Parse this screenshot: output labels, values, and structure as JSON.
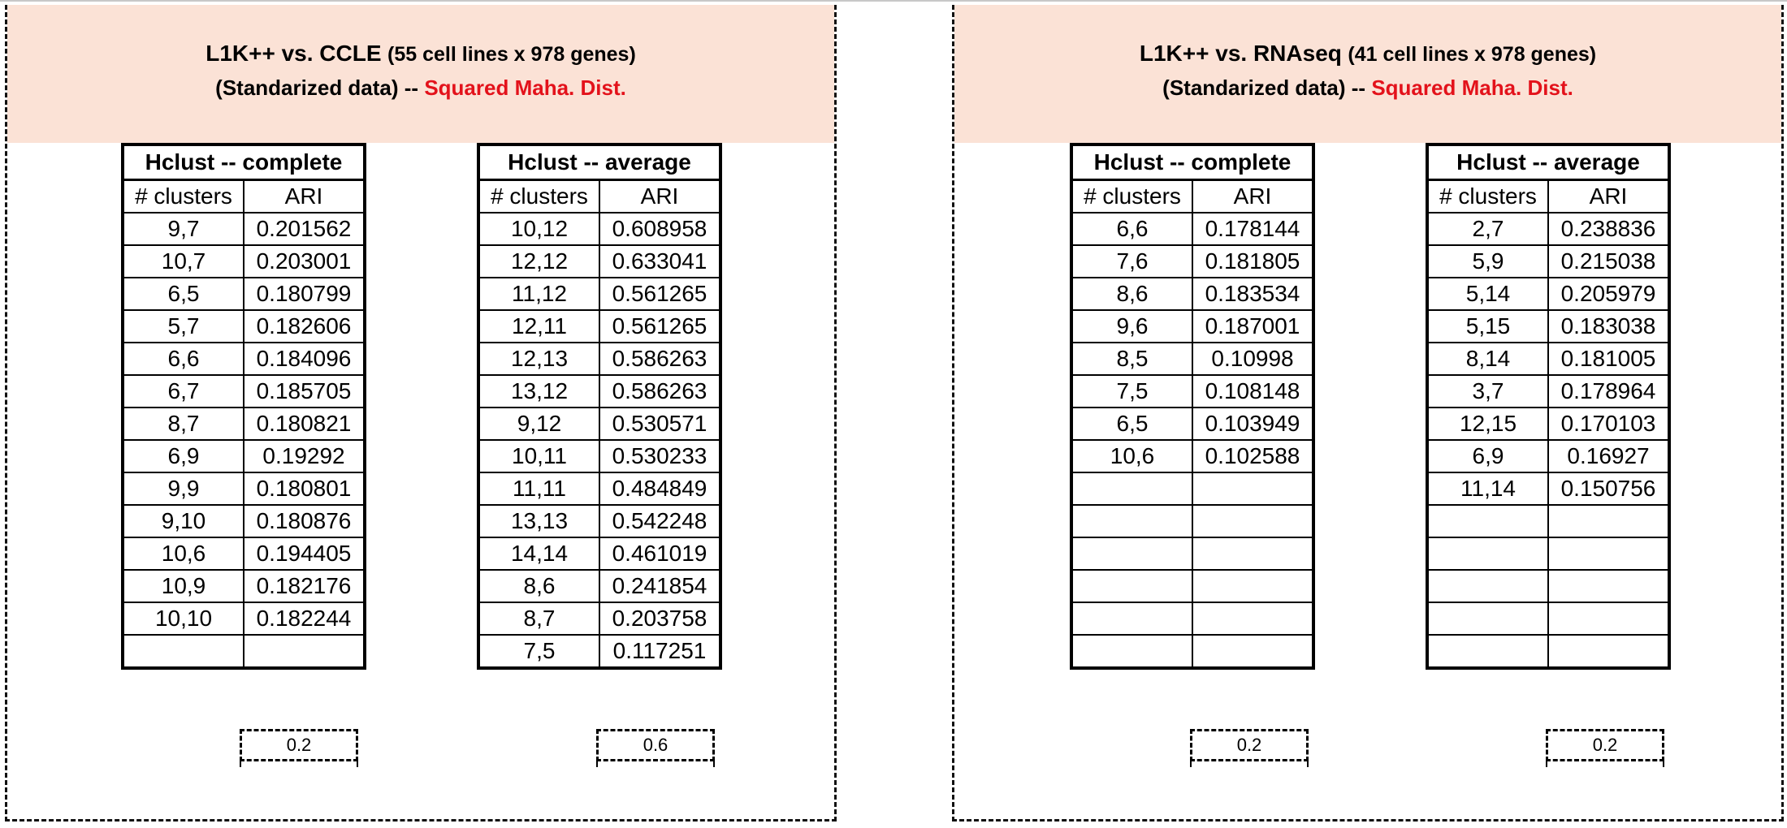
{
  "panels": [
    {
      "title_main": "L1K++ vs. CCLE",
      "title_detail": "(55 cell lines x 978 genes)",
      "subtitle_plain": "(Standarized data) --",
      "subtitle_red": "Squared Maha. Dist.",
      "tables": [
        {
          "title": "Hclust  -- complete",
          "col1": "# clusters",
          "col2": "ARI",
          "rows": [
            [
              "9,7",
              "0.201562"
            ],
            [
              "10,7",
              "0.203001"
            ],
            [
              "6,5",
              "0.180799"
            ],
            [
              "5,7",
              "0.182606"
            ],
            [
              "6,6",
              "0.184096"
            ],
            [
              "6,7",
              "0.185705"
            ],
            [
              "8,7",
              "0.180821"
            ],
            [
              "6,9",
              "0.19292"
            ],
            [
              "9,9",
              "0.180801"
            ],
            [
              "9,10",
              "0.180876"
            ],
            [
              "10,6",
              "0.194405"
            ],
            [
              "10,9",
              "0.182176"
            ],
            [
              "10,10",
              "0.182244"
            ],
            [
              "",
              ""
            ]
          ],
          "summary": "0.2"
        },
        {
          "title": "Hclust  -- average",
          "col1": "# clusters",
          "col2": "ARI",
          "rows": [
            [
              "10,12",
              "0.608958"
            ],
            [
              "12,12",
              "0.633041"
            ],
            [
              "11,12",
              "0.561265"
            ],
            [
              "12,11",
              "0.561265"
            ],
            [
              "12,13",
              "0.586263"
            ],
            [
              "13,12",
              "0.586263"
            ],
            [
              "9,12",
              "0.530571"
            ],
            [
              "10,11",
              "0.530233"
            ],
            [
              "11,11",
              "0.484849"
            ],
            [
              "13,13",
              "0.542248"
            ],
            [
              "14,14",
              "0.461019"
            ],
            [
              "8,6",
              "0.241854"
            ],
            [
              "8,7",
              "0.203758"
            ],
            [
              "7,5",
              "0.117251"
            ]
          ],
          "summary": "0.6"
        }
      ]
    },
    {
      "title_main": "L1K++ vs. RNAseq",
      "title_detail": "(41 cell lines x 978 genes)",
      "subtitle_plain": "(Standarized data) --",
      "subtitle_red": "Squared Maha. Dist.",
      "tables": [
        {
          "title": "Hclust  -- complete",
          "col1": "# clusters",
          "col2": "ARI",
          "rows": [
            [
              "6,6",
              "0.178144"
            ],
            [
              "7,6",
              "0.181805"
            ],
            [
              "8,6",
              "0.183534"
            ],
            [
              "9,6",
              "0.187001"
            ],
            [
              "8,5",
              "0.10998"
            ],
            [
              "7,5",
              "0.108148"
            ],
            [
              "6,5",
              "0.103949"
            ],
            [
              "10,6",
              "0.102588"
            ],
            [
              "",
              ""
            ],
            [
              "",
              ""
            ],
            [
              "",
              ""
            ],
            [
              "",
              ""
            ],
            [
              "",
              ""
            ],
            [
              "",
              ""
            ]
          ],
          "summary": "0.2"
        },
        {
          "title": "Hclust -- average",
          "col1": "# clusters",
          "col2": "ARI",
          "rows": [
            [
              "2,7",
              "0.238836"
            ],
            [
              "5,9",
              "0.215038"
            ],
            [
              "5,14",
              "0.205979"
            ],
            [
              "5,15",
              "0.183038"
            ],
            [
              "8,14",
              "0.181005"
            ],
            [
              "3,7",
              "0.178964"
            ],
            [
              "12,15",
              "0.170103"
            ],
            [
              "6,9",
              "0.16927"
            ],
            [
              "11,14",
              "0.150756"
            ],
            [
              "",
              ""
            ],
            [
              "",
              ""
            ],
            [
              "",
              ""
            ],
            [
              "",
              ""
            ],
            [
              "",
              ""
            ]
          ],
          "summary": "0.2"
        }
      ]
    }
  ]
}
